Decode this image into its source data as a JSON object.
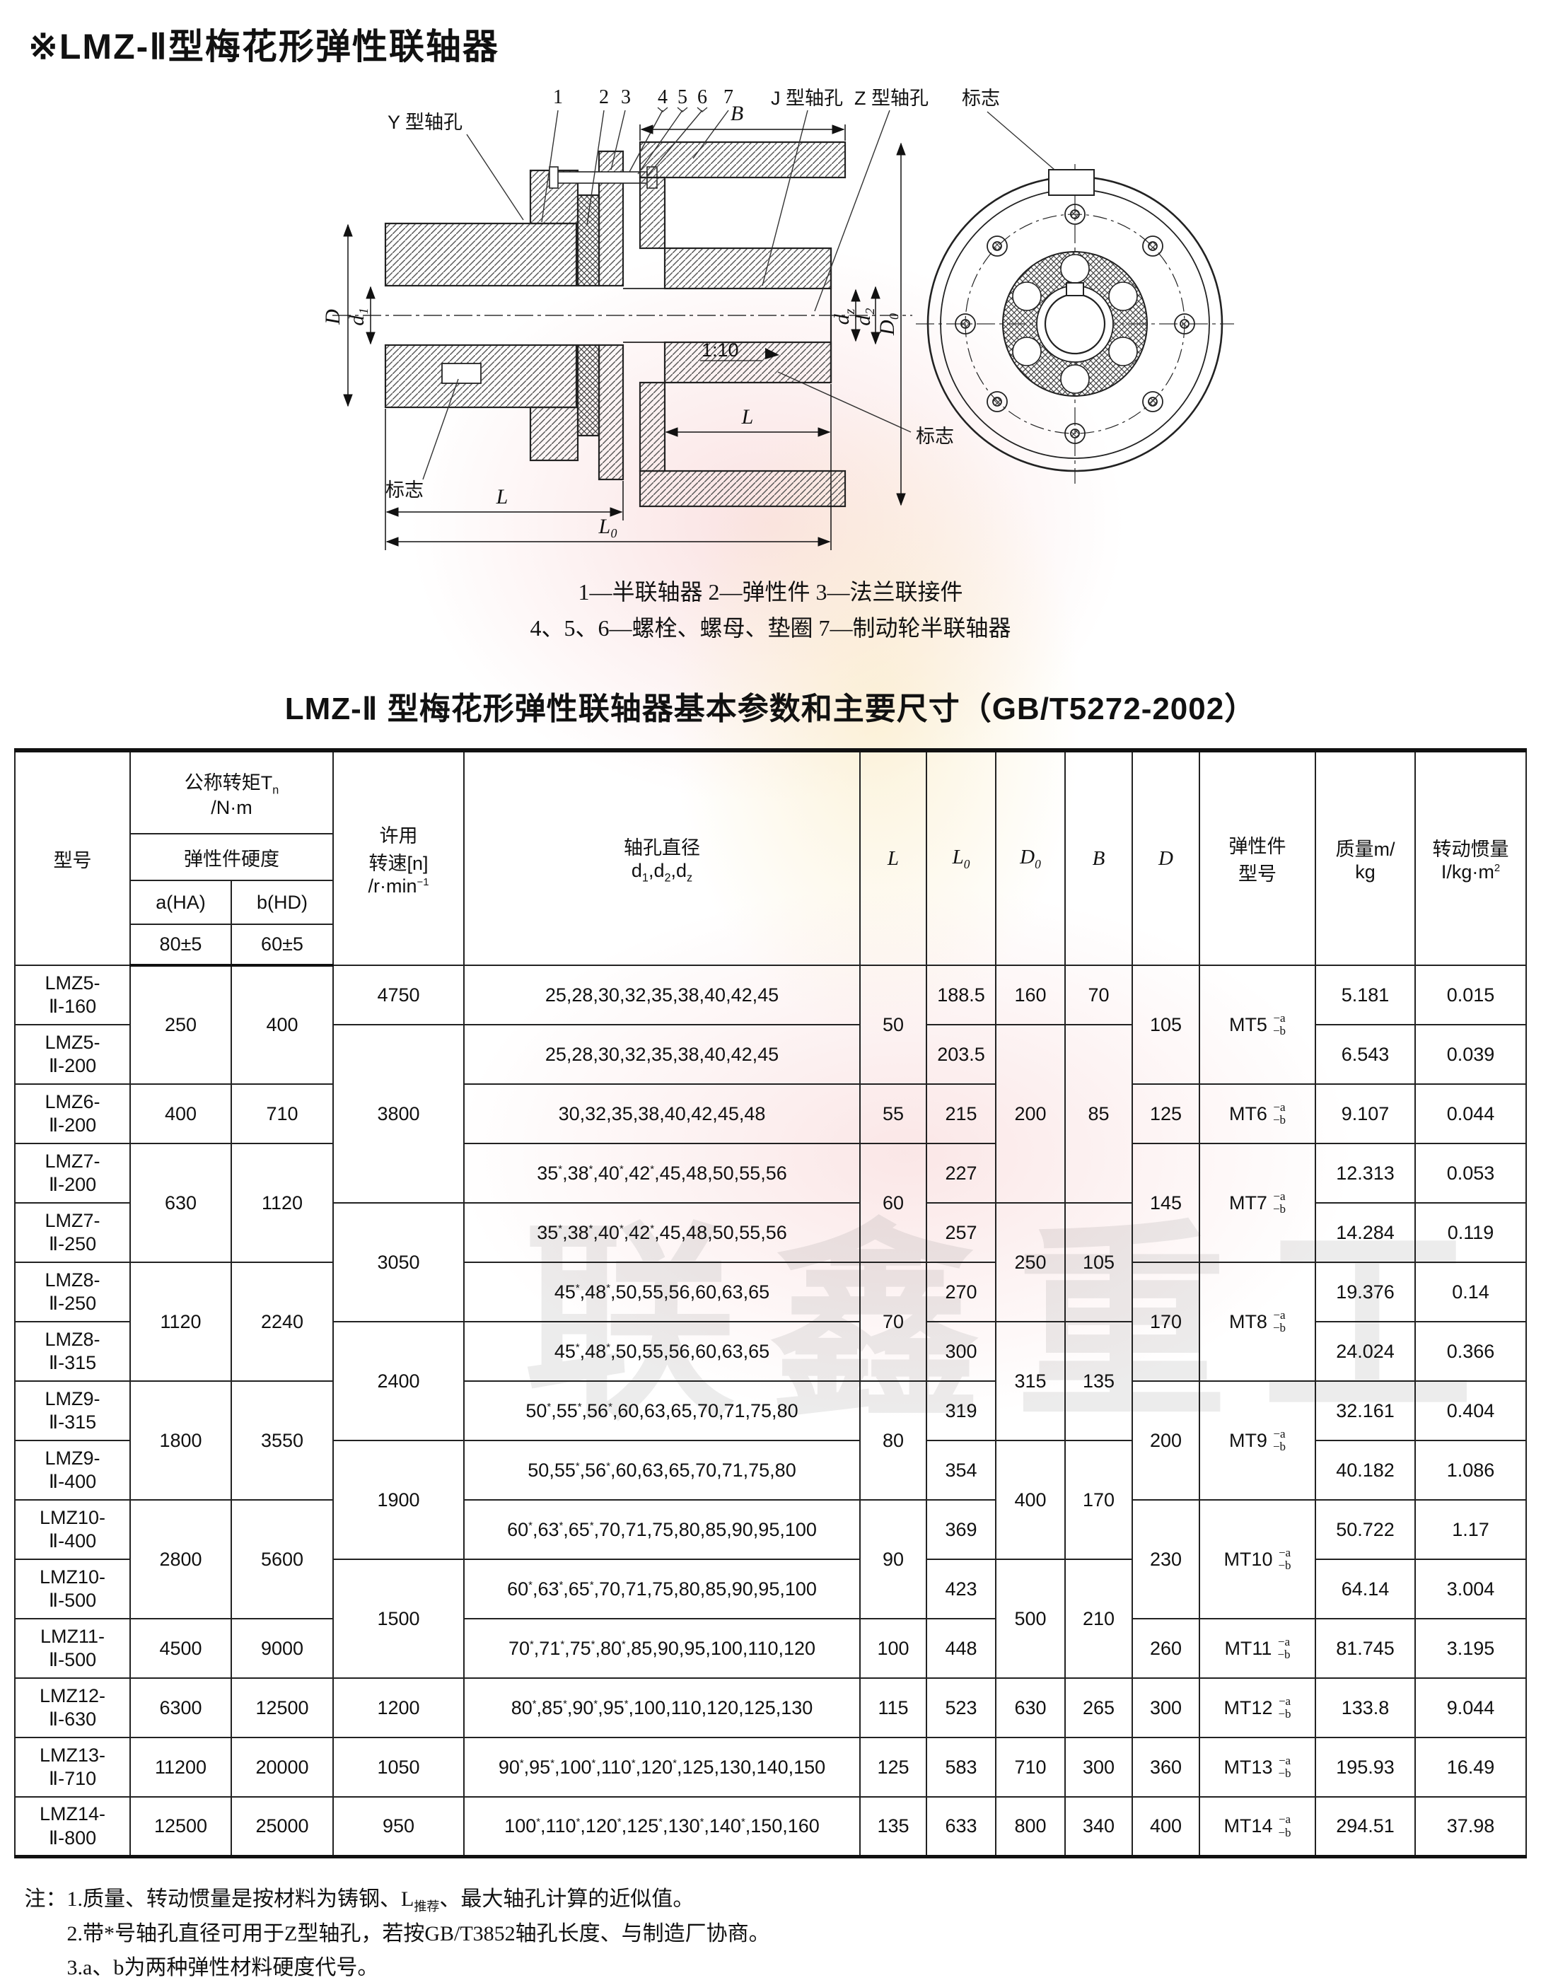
{
  "page": {
    "title": "※LMZ-Ⅱ型梅花形弹性联轴器",
    "watermark": "联鑫重工"
  },
  "diagram": {
    "labels": {
      "y_bore": "Y 型轴孔",
      "j_bore": "J 型轴孔",
      "z_bore": "Z 型轴孔",
      "mark_top": "标志",
      "mark_left": "标志",
      "mark_right": "标志",
      "n1": "1",
      "n2": "2",
      "n3": "3",
      "n4": "4",
      "n5": "5",
      "n6": "6",
      "n7": "7",
      "dim_B": "B",
      "dim_D": "D",
      "dim_d1": "d₁",
      "dim_d_base": "d",
      "dim_d_sub_z": "z",
      "dim_d2": "d₂",
      "dim_D0": "D₀",
      "dim_L_left": "L",
      "dim_L_right": "L",
      "dim_L0": "L₀",
      "taper": "1:10"
    },
    "caption_line1": "1—半联轴器 2—弹性件 3—法兰联接件",
    "caption_line2": "4、5、6—螺栓、螺母、垫圈 7—制动轮半联轴器"
  },
  "table": {
    "title": "LMZ-Ⅱ 型梅花形弹性联轴器基本参数和主要尺寸（GB/T5272-2002）",
    "header": {
      "model": "型号",
      "torque": "公称转矩T<sub>n</sub><br>/N·m",
      "hardness": "弹性件硬度",
      "a": "a(HA)",
      "b": "b(HD)",
      "a2": "80±5",
      "b2": "60±5",
      "speed": "许用<br>转速[n]<br>/r·min<sup>−1</sup>",
      "bore": "轴孔直径<br>d<sub>1</sub>,d<sub>2</sub>,d<sub>z</sub>",
      "L": "L",
      "L0": "L<sub>0</sub>",
      "D0": "D<sub>0</sub>",
      "B": "B",
      "D": "D",
      "mt": "弹性件<br>型号",
      "mass": "质量m/<br>kg",
      "inertia": "转动惯量<br>I/kg·m<sup>2</sup>"
    },
    "mt_sup": "−a",
    "mt_sub": "−b",
    "rows": [
      {
        "c": [
          {
            "t": "LMZ5-\nⅡ-160",
            "model": 1
          },
          {
            "t": "250",
            "rs": 2
          },
          {
            "t": "400",
            "rs": 2
          },
          {
            "t": "4750"
          },
          {
            "t": "25,28,30,32,35,38,40,42,45",
            "bore": 1
          },
          {
            "t": "50",
            "rs": 2
          },
          {
            "t": "188.5"
          },
          {
            "t": "160"
          },
          {
            "t": "70"
          },
          {
            "t": "105",
            "rs": 2
          },
          {
            "t": "MT5",
            "rs": 2,
            "mt": 1
          },
          {
            "t": "5.181"
          },
          {
            "t": "0.015"
          }
        ]
      },
      {
        "c": [
          {
            "t": "LMZ5-\nⅡ-200",
            "model": 1
          },
          null,
          null,
          {
            "t": "3800",
            "rs": 3
          },
          {
            "t": "25,28,30,32,35,38,40,42,45",
            "bore": 1
          },
          null,
          {
            "t": "203.5"
          },
          {
            "t": "200",
            "rs": 3
          },
          {
            "t": "85",
            "rs": 3
          },
          null,
          null,
          {
            "t": "6.543"
          },
          {
            "t": "0.039"
          }
        ]
      },
      {
        "c": [
          {
            "t": "LMZ6-\nⅡ-200",
            "model": 1
          },
          {
            "t": "400"
          },
          {
            "t": "710"
          },
          null,
          {
            "t": "30,32,35,38,40,42,45,48",
            "bore": 1
          },
          {
            "t": "55"
          },
          {
            "t": "215"
          },
          null,
          null,
          {
            "t": "125"
          },
          {
            "t": "MT6",
            "mt": 1
          },
          {
            "t": "9.107"
          },
          {
            "t": "0.044"
          }
        ]
      },
      {
        "c": [
          {
            "t": "LMZ7-\nⅡ-200",
            "model": 1
          },
          {
            "t": "630",
            "rs": 2
          },
          {
            "t": "1120",
            "rs": 2
          },
          null,
          {
            "t": "35*,38*,40*,42*,45,48,50,55,56",
            "bore": 1
          },
          {
            "t": "60",
            "rs": 2
          },
          {
            "t": "227"
          },
          null,
          null,
          {
            "t": "145",
            "rs": 2
          },
          {
            "t": "MT7",
            "rs": 2,
            "mt": 1
          },
          {
            "t": "12.313"
          },
          {
            "t": "0.053"
          }
        ]
      },
      {
        "c": [
          {
            "t": "LMZ7-\nⅡ-250",
            "model": 1
          },
          null,
          null,
          {
            "t": "3050",
            "rs": 2
          },
          {
            "t": "35*,38*,40*,42*,45,48,50,55,56",
            "bore": 1
          },
          null,
          {
            "t": "257"
          },
          {
            "t": "250",
            "rs": 2
          },
          {
            "t": "105",
            "rs": 2
          },
          null,
          null,
          {
            "t": "14.284"
          },
          {
            "t": "0.119"
          }
        ]
      },
      {
        "c": [
          {
            "t": "LMZ8-\nⅡ-250",
            "model": 1
          },
          {
            "t": "1120",
            "rs": 2
          },
          {
            "t": "2240",
            "rs": 2
          },
          null,
          {
            "t": "45*,48*,50,55,56,60,63,65",
            "bore": 1
          },
          {
            "t": "70",
            "rs": 2
          },
          {
            "t": "270"
          },
          null,
          null,
          {
            "t": "170",
            "rs": 2
          },
          {
            "t": "MT8",
            "rs": 2,
            "mt": 1
          },
          {
            "t": "19.376"
          },
          {
            "t": "0.14"
          }
        ]
      },
      {
        "c": [
          {
            "t": "LMZ8-\nⅡ-315",
            "model": 1
          },
          null,
          null,
          {
            "t": "2400",
            "rs": 2
          },
          {
            "t": "45*,48*,50,55,56,60,63,65",
            "bore": 1
          },
          null,
          {
            "t": "300"
          },
          {
            "t": "315",
            "rs": 2
          },
          {
            "t": "135",
            "rs": 2
          },
          null,
          null,
          {
            "t": "24.024"
          },
          {
            "t": "0.366"
          }
        ]
      },
      {
        "c": [
          {
            "t": "LMZ9-\nⅡ-315",
            "model": 1
          },
          {
            "t": "1800",
            "rs": 2
          },
          {
            "t": "3550",
            "rs": 2
          },
          null,
          {
            "t": "50*,55*,56*,60,63,65,70,71,75,80",
            "bore": 1
          },
          {
            "t": "80",
            "rs": 2
          },
          {
            "t": "319"
          },
          null,
          null,
          {
            "t": "200",
            "rs": 2
          },
          {
            "t": "MT9",
            "rs": 2,
            "mt": 1
          },
          {
            "t": "32.161"
          },
          {
            "t": "0.404"
          }
        ]
      },
      {
        "c": [
          {
            "t": "LMZ9-\nⅡ-400",
            "model": 1
          },
          null,
          null,
          {
            "t": "1900",
            "rs": 2
          },
          {
            "t": "50,55*,56*,60,63,65,70,71,75,80",
            "bore": 1
          },
          null,
          {
            "t": "354"
          },
          {
            "t": "400",
            "rs": 2
          },
          {
            "t": "170",
            "rs": 2
          },
          null,
          null,
          {
            "t": "40.182"
          },
          {
            "t": "1.086"
          }
        ]
      },
      {
        "c": [
          {
            "t": "LMZ10-\nⅡ-400",
            "model": 1
          },
          {
            "t": "2800",
            "rs": 2
          },
          {
            "t": "5600",
            "rs": 2
          },
          null,
          {
            "t": "60*,63*,65*,70,71,75,80,85,90,95,100",
            "bore": 1
          },
          {
            "t": "90",
            "rs": 2
          },
          {
            "t": "369"
          },
          null,
          null,
          {
            "t": "230",
            "rs": 2
          },
          {
            "t": "MT10",
            "rs": 2,
            "mt": 1
          },
          {
            "t": "50.722"
          },
          {
            "t": "1.17"
          }
        ]
      },
      {
        "c": [
          {
            "t": "LMZ10-\nⅡ-500",
            "model": 1
          },
          null,
          null,
          {
            "t": "1500",
            "rs": 2
          },
          {
            "t": "60*,63*,65*,70,71,75,80,85,90,95,100",
            "bore": 1
          },
          null,
          {
            "t": "423"
          },
          {
            "t": "500",
            "rs": 2
          },
          {
            "t": "210",
            "rs": 2
          },
          null,
          null,
          {
            "t": "64.14"
          },
          {
            "t": "3.004"
          }
        ]
      },
      {
        "c": [
          {
            "t": "LMZ11-\nⅡ-500",
            "model": 1
          },
          {
            "t": "4500"
          },
          {
            "t": "9000"
          },
          null,
          {
            "t": "70*,71*,75*,80*,85,90,95,100,110,120",
            "bore": 1
          },
          {
            "t": "100"
          },
          {
            "t": "448"
          },
          null,
          null,
          {
            "t": "260"
          },
          {
            "t": "MT11",
            "mt": 1
          },
          {
            "t": "81.745"
          },
          {
            "t": "3.195"
          }
        ]
      },
      {
        "c": [
          {
            "t": "LMZ12-\nⅡ-630",
            "model": 1
          },
          {
            "t": "6300"
          },
          {
            "t": "12500"
          },
          {
            "t": "1200"
          },
          {
            "t": "80*,85*,90*,95*,100,110,120,125,130",
            "bore": 1
          },
          {
            "t": "115"
          },
          {
            "t": "523"
          },
          {
            "t": "630"
          },
          {
            "t": "265"
          },
          {
            "t": "300"
          },
          {
            "t": "MT12",
            "mt": 1
          },
          {
            "t": "133.8"
          },
          {
            "t": "9.044"
          }
        ]
      },
      {
        "c": [
          {
            "t": "LMZ13-\nⅡ-710",
            "model": 1
          },
          {
            "t": "11200"
          },
          {
            "t": "20000"
          },
          {
            "t": "1050"
          },
          {
            "t": "90*,95*,100*,110*,120*,125,130,140,150",
            "bore": 1
          },
          {
            "t": "125"
          },
          {
            "t": "583"
          },
          {
            "t": "710"
          },
          {
            "t": "300"
          },
          {
            "t": "360"
          },
          {
            "t": "MT13",
            "mt": 1
          },
          {
            "t": "195.93"
          },
          {
            "t": "16.49"
          }
        ]
      },
      {
        "c": [
          {
            "t": "LMZ14-\nⅡ-800",
            "model": 1
          },
          {
            "t": "12500"
          },
          {
            "t": "25000"
          },
          {
            "t": "950"
          },
          {
            "t": "100*,110*,120*,125*,130*,140*,150,160",
            "bore": 1
          },
          {
            "t": "135"
          },
          {
            "t": "633"
          },
          {
            "t": "800"
          },
          {
            "t": "340"
          },
          {
            "t": "400"
          },
          {
            "t": "MT14",
            "mt": 1
          },
          {
            "t": "294.51"
          },
          {
            "t": "37.98"
          }
        ]
      }
    ]
  },
  "notes": {
    "prefix": "注：",
    "n1": "1.质量、转动惯量是按材料为铸钢、L<sub>推荐</sub>、最大轴孔计算的近似值。",
    "n2": "2.带*号轴孔直径可用于Z型轴孔，若按GB/T3852轴孔长度、与制造厂协商。",
    "n3": "3.a、b为两种弹性材料硬度代号。"
  }
}
